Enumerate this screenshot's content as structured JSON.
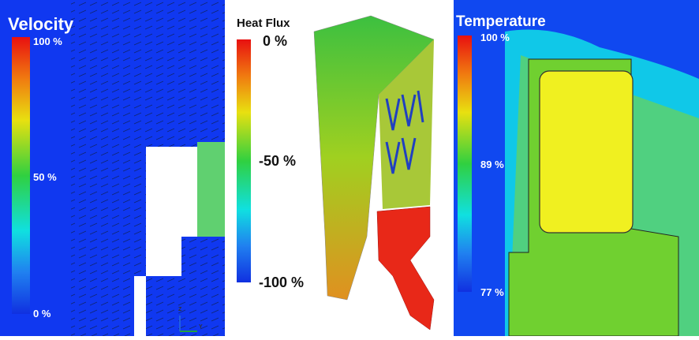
{
  "panels": [
    {
      "title": "Velocity",
      "labels": [
        "100 %",
        "50 %",
        "0 %"
      ],
      "axes": [
        "Z",
        "Y"
      ]
    },
    {
      "title": "Heat Flux",
      "labels": [
        "0 %",
        "-50 %",
        "-100 %"
      ]
    },
    {
      "title": "Temperature",
      "labels": [
        "100 %",
        "89 %",
        "77 %"
      ]
    }
  ]
}
